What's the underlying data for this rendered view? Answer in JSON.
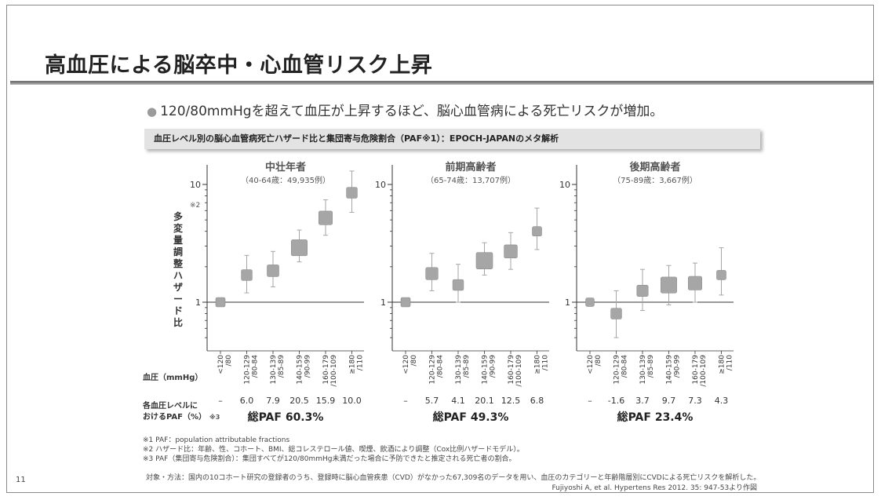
{
  "slide": {
    "title": "高血圧による脳卒中・心血管リスク上昇",
    "bullet": "120/80mmHgを超えて血圧が上昇するほど、脳心血管病による死亡リスクが増加。",
    "subtitle": "血圧レベル別の脳心血管病死亡ハザード比と集団寄与危険割合（PAF※1）：EPOCH-JAPANのメタ解析",
    "y_axis_label": "多変量調整ハザード比",
    "y_axis_note": "※2",
    "bp_axis_label": "血圧（mmHg）",
    "paf_row_label_1": "各血圧レベルに",
    "paf_row_label_2": "おけるPAF（%）",
    "paf_row_note": "※3",
    "footnote_1": "※1 PAF：population attributable fractions",
    "footnote_2": "※2 ハザード比：年齢、性、コホート、BMI、総コレステロール値、喫煙、飲酒により調整（Cox比例ハザードモデル）。",
    "footnote_3": "※3 PAF（集団寄与危険割合）：集団すべてが120/80mmHg未満だった場合に予防できたと推定される死亡者の割合。",
    "methods": "対象・方法：国内の10コホート研究の登録者のうち、登録時に脳心血管疾患（CVD）がなかった67,309名のデータを用い、血圧のカテゴリーと年齢階層別にCVDによる死亡リスクを解析した。",
    "citation": "Fujiyoshi A, et al. Hypertens Res 2012. 35: 947-53より作図",
    "page_number": "11"
  },
  "colors": {
    "marker": "#a6a6a6",
    "error_bar": "#a6a6a6",
    "axis": "#333333",
    "title_rule": "#7a7a7a",
    "subtitle_bar": "#e3e3e3"
  },
  "chart_data": [
    {
      "type": "scatter",
      "title": "中壮年者",
      "subtitle": "（40-64歳：49,935例）",
      "y_scale": "log",
      "ylim": [
        0.4,
        15
      ],
      "y_ticks": [
        "1",
        "10"
      ],
      "categories": [
        "<120/80",
        "120-129/80-84",
        "130-139/85-89",
        "140-159/90-99",
        "160-179/100-109",
        "≥180/110"
      ],
      "values": [
        1.0,
        1.7,
        1.85,
        2.9,
        5.2,
        8.5
      ],
      "ci_lower": [
        1.0,
        1.2,
        1.35,
        2.2,
        3.7,
        5.8
      ],
      "ci_upper": [
        1.0,
        2.5,
        2.7,
        4.1,
        7.4,
        13.0
      ],
      "marker_size": [
        1,
        1.15,
        1.25,
        1.7,
        1.45,
        1.15
      ],
      "paf": [
        "–",
        "6.0",
        "7.9",
        "20.5",
        "15.9",
        "10.0"
      ],
      "total_paf": "総PAF 60.3%"
    },
    {
      "type": "scatter",
      "title": "前期高齢者",
      "subtitle": "（65-74歳：13,707例）",
      "y_scale": "log",
      "ylim": [
        0.4,
        15
      ],
      "y_ticks": [
        "1",
        "10"
      ],
      "categories": [
        "<120/80",
        "120-129/80-84",
        "130-139/85-89",
        "140-159/90-99",
        "160-179/100-109",
        "≥180/110"
      ],
      "values": [
        1.0,
        1.75,
        1.4,
        2.25,
        2.7,
        4.0
      ],
      "ci_lower": [
        1.0,
        1.25,
        1.0,
        1.7,
        1.9,
        2.8
      ],
      "ci_upper": [
        1.0,
        2.6,
        2.1,
        3.2,
        3.9,
        6.3
      ],
      "marker_size": [
        1,
        1.3,
        1.15,
        1.75,
        1.4,
        1.0
      ],
      "paf": [
        "–",
        "5.7",
        "4.1",
        "20.1",
        "12.5",
        "6.8"
      ],
      "total_paf": "総PAF 49.3%"
    },
    {
      "type": "scatter",
      "title": "後期高齢者",
      "subtitle": "（75-89歳：3,667例）",
      "y_scale": "log",
      "ylim": [
        0.4,
        15
      ],
      "y_ticks": [
        "1",
        "10"
      ],
      "categories": [
        "<120/80",
        "120-129/80-84",
        "130-139/85-89",
        "140-159/90-99",
        "160-179/100-109",
        "≥180/110"
      ],
      "values": [
        1.0,
        0.8,
        1.25,
        1.4,
        1.45,
        1.7
      ],
      "ci_lower": [
        1.0,
        0.5,
        0.85,
        0.95,
        1.0,
        1.15
      ],
      "ci_upper": [
        1.0,
        1.25,
        1.9,
        2.05,
        2.15,
        2.9
      ],
      "marker_size": [
        0.9,
        1.15,
        1.2,
        1.7,
        1.45,
        1.0
      ],
      "paf": [
        "–",
        "-1.6",
        "3.7",
        "9.7",
        "7.3",
        "4.3"
      ],
      "total_paf": "総PAF 23.4%"
    }
  ]
}
